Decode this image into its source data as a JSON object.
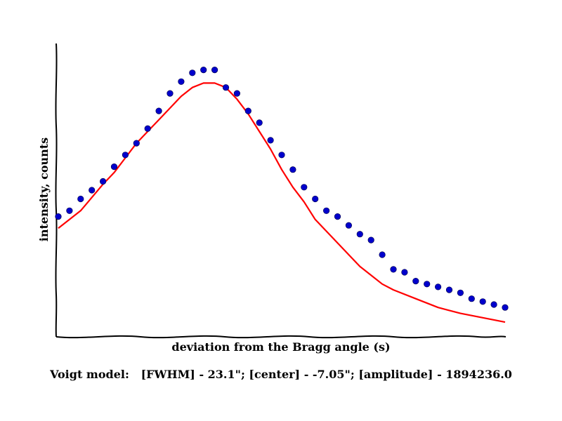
{
  "chart_data": {
    "type": "scatter",
    "title": "",
    "xlabel": "deviation from the Bragg angle (s)",
    "ylabel": "intensity, counts",
    "caption": "Voigt model:   [FWHM] - 23.1\"; [center] - -7.05\"; [amplitude] - 1894236.0",
    "xlim": [
      0,
      40
    ],
    "ylim": [
      0,
      100
    ],
    "grid": false,
    "legend": "none",
    "colors": {
      "points": "#0000cc",
      "fit": "#ff0000",
      "axes": "#000000"
    },
    "series": [
      {
        "kind": "points",
        "x": [
          0,
          1,
          2,
          3,
          4,
          5,
          6,
          7,
          8,
          9,
          10,
          11,
          12,
          13,
          14,
          15,
          16,
          17,
          18,
          19,
          20,
          21,
          22,
          23,
          24,
          25,
          26,
          27,
          28,
          29,
          30,
          31,
          32,
          33,
          34,
          35,
          36,
          37,
          38,
          39,
          40
        ],
        "values": [
          41,
          43,
          47,
          50,
          53,
          58,
          62,
          66,
          71,
          77,
          83,
          87,
          90,
          91,
          91,
          85,
          83,
          77,
          73,
          67,
          62,
          57,
          51,
          47,
          43,
          41,
          38,
          35,
          33,
          28,
          23,
          22,
          19,
          18,
          17,
          16,
          15,
          13,
          12,
          11,
          10
        ]
      },
      {
        "kind": "fit-line",
        "x": [
          0,
          2,
          4,
          5,
          6,
          7,
          8,
          9,
          10,
          11,
          12,
          13,
          14,
          15,
          16,
          17,
          18,
          19,
          20,
          21,
          22,
          23,
          24,
          25,
          26,
          27,
          28,
          29,
          30,
          32,
          34,
          36,
          38,
          40
        ],
        "values": [
          37,
          43,
          52,
          56,
          61,
          66,
          70,
          74,
          78,
          82,
          85,
          86.5,
          86.5,
          85,
          81,
          76,
          70,
          64,
          57,
          51,
          46,
          40,
          36,
          32,
          28,
          24,
          21,
          18,
          16,
          13,
          10,
          8,
          6.5,
          5
        ]
      }
    ]
  }
}
